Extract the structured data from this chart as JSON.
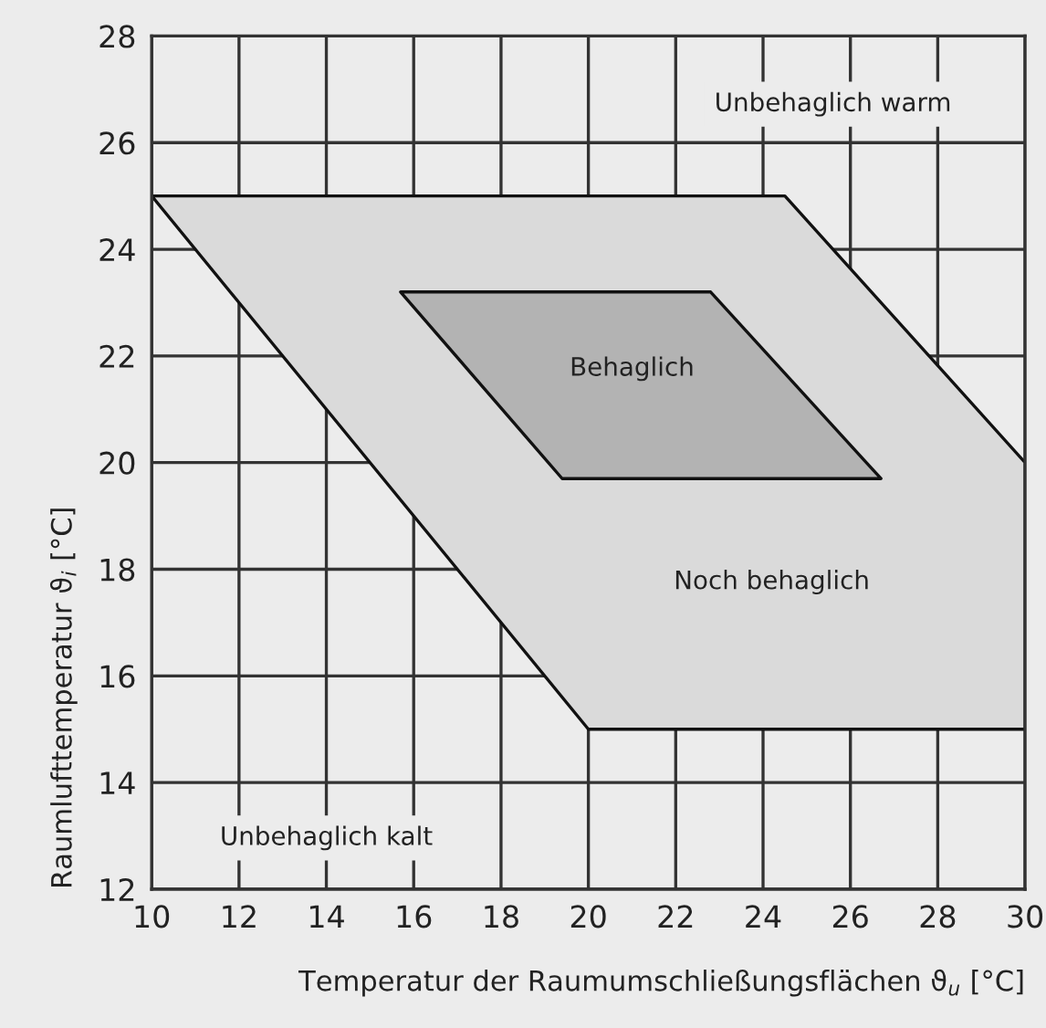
{
  "chart_data": {
    "type": "area",
    "xlabel": "Temperatur der Raumumschließungsflächen ϑ$_{u}$ [°C]",
    "ylabel": "Raumlufttemperatur ϑ$_{i}$ [°C]",
    "series": [
      {
        "name": "Noch behaglich",
        "color": "#dadada",
        "x": [
          10,
          24.5,
          30,
          30,
          20
        ],
        "values": [
          25,
          25,
          20,
          15,
          15
        ]
      },
      {
        "name": "Behaglich",
        "color": "#b3b3b3",
        "x": [
          15.7,
          22.8,
          26.7,
          19.4
        ],
        "values": [
          23.2,
          23.2,
          19.7,
          19.7
        ]
      }
    ],
    "annotations": [
      "Unbehaglich warm",
      "Unbehaglich kalt"
    ],
    "xlim": [
      10,
      30
    ],
    "xticks": [
      10,
      12,
      14,
      16,
      18,
      20,
      22,
      24,
      26,
      28,
      30
    ],
    "ylim": [
      12,
      28
    ],
    "yticks": [
      12,
      14,
      16,
      18,
      20,
      22,
      24,
      26,
      28
    ],
    "grid": true
  }
}
